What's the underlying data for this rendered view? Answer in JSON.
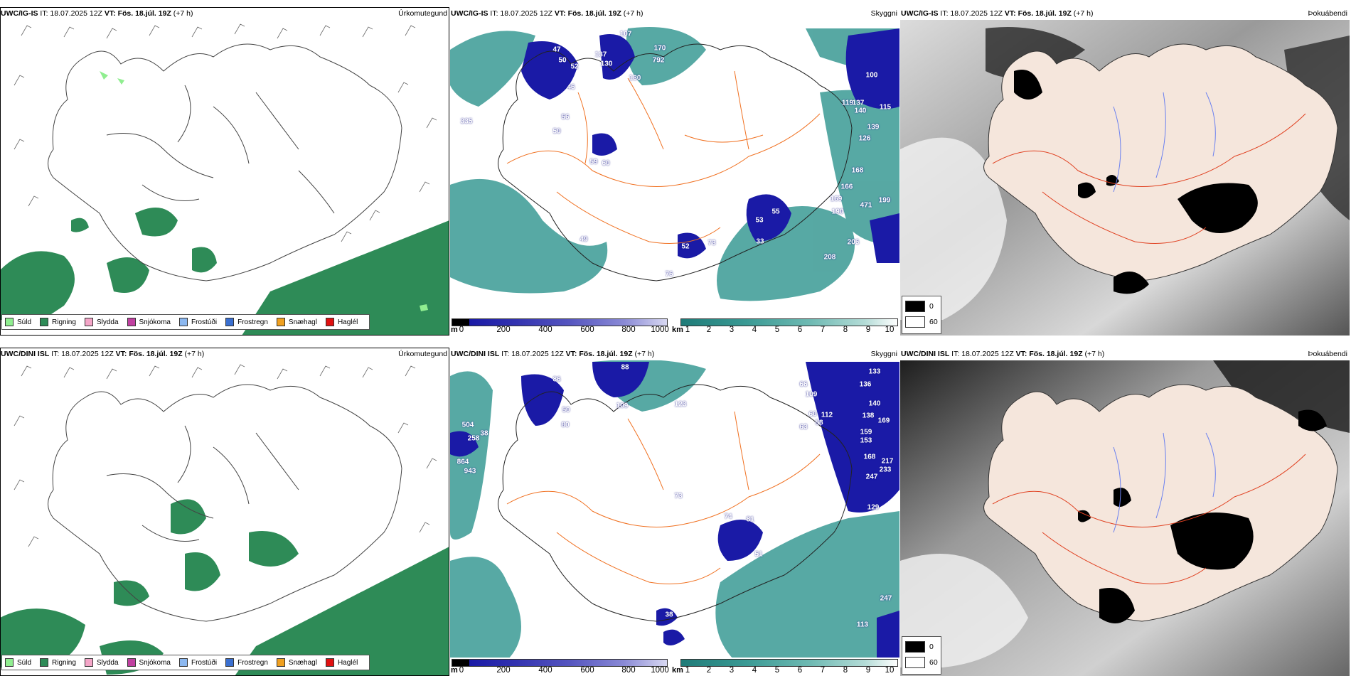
{
  "rows": [
    {
      "panels": [
        {
          "model": "UWC/IG-IS",
          "it_label": "IT: 18.07.2025 12Z",
          "vt_label": "VT: Fös. 18.júl. 19Z",
          "offset": "(+7 h)",
          "title": "Úrkomutegund"
        },
        {
          "model": "UWC/IG-IS",
          "it_label": "IT: 18.07.2025 12Z",
          "vt_label": "VT: Fös. 18.júl. 19Z",
          "offset": "(+7 h)",
          "title": "Skyggni"
        },
        {
          "model": "UWC/IG-IS",
          "it_label": "IT: 18.07.2025 12Z",
          "vt_label": "VT: Fös. 18.júl. 19Z",
          "offset": "(+7 h)",
          "title": "Þokuábendi"
        }
      ]
    },
    {
      "panels": [
        {
          "model": "UWC/DINI ISL",
          "it_label": "IT: 18.07.2025 12Z",
          "vt_label": "VT: Fös. 18.júl. 19Z",
          "offset": "(+7 h)",
          "title": "Úrkomutegund"
        },
        {
          "model": "UWC/DINI ISL",
          "it_label": "IT: 18.07.2025 12Z",
          "vt_label": "VT: Fös. 18.júl. 19Z",
          "offset": "(+7 h)",
          "title": "Skyggni"
        },
        {
          "model": "UWC/DINI ISL",
          "it_label": "IT: 18.07.2025 12Z",
          "vt_label": "VT: Fös. 18.júl. 19Z",
          "offset": "(+7 h)",
          "title": "Þokuábendi"
        }
      ]
    }
  ],
  "precip_legend": [
    {
      "label": "Súld",
      "color": "#90ee90"
    },
    {
      "label": "Rigning",
      "color": "#2e8b57"
    },
    {
      "label": "Slydda",
      "color": "#f4a6c8"
    },
    {
      "label": "Snjókoma",
      "color": "#c040a0"
    },
    {
      "label": "Frostúði",
      "color": "#8cb8f0"
    },
    {
      "label": "Frostregn",
      "color": "#3a6fd0"
    },
    {
      "label": "Snæhagl",
      "color": "#f0a020"
    },
    {
      "label": "Haglél",
      "color": "#e01010"
    }
  ],
  "visibility_bars": {
    "ceiling": {
      "unit": "m",
      "ticks": [
        "0",
        "200",
        "400",
        "600",
        "800",
        "1000"
      ]
    },
    "visibility": {
      "unit": "km",
      "ticks": [
        "1",
        "2",
        "3",
        "4",
        "5",
        "6",
        "7",
        "8",
        "9",
        "10"
      ]
    }
  },
  "fog_legend": [
    {
      "label": "0",
      "color": "#000000"
    },
    {
      "label": "60",
      "color": "#ffffff"
    }
  ],
  "ceiling_labels": {
    "row1": [
      "107",
      "170",
      "792",
      "47",
      "50",
      "52",
      "137",
      "130",
      "46",
      "130",
      "16",
      "56",
      "50",
      "61",
      "58",
      "59",
      "60",
      "335",
      "36",
      "61",
      "65",
      "100",
      "119",
      "137",
      "30",
      "140",
      "115",
      "139",
      "126",
      "107",
      "168",
      "166",
      "71",
      "76",
      "169",
      "199",
      "471",
      "190",
      "53",
      "55",
      "33",
      "206",
      "52",
      "73",
      "208",
      "76",
      "49"
    ],
    "row2": [
      "88",
      "133",
      "136",
      "109",
      "140",
      "112",
      "138",
      "109",
      "123",
      "86",
      "66",
      "50",
      "60",
      "80",
      "63",
      "58",
      "38",
      "159",
      "169",
      "153",
      "168",
      "217",
      "233",
      "247",
      "504",
      "258",
      "864",
      "943",
      "73",
      "74",
      "81",
      "91",
      "51",
      "129",
      "30",
      "38",
      "247",
      "113"
    ]
  }
}
